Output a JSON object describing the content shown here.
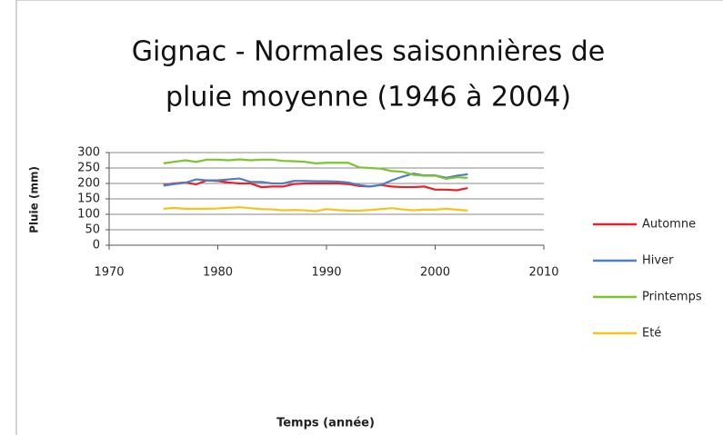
{
  "chart_data": {
    "type": "line",
    "title": [
      "Gignac - Normales saisonnières de",
      "pluie moyenne (1946 à 2004)"
    ],
    "x_label": "Temps (année)",
    "y_label": "Pluie (mm)",
    "x": [
      1975,
      1976,
      1977,
      1978,
      1979,
      1980,
      1981,
      1982,
      1983,
      1984,
      1985,
      1986,
      1987,
      1988,
      1989,
      1990,
      1991,
      1992,
      1993,
      1994,
      1995,
      1996,
      1997,
      1998,
      1999,
      2000,
      2001,
      2002,
      2003
    ],
    "series": [
      {
        "name": "Automne",
        "color": "#e8222a",
        "values": [
          195,
          200,
          203,
          197,
          210,
          208,
          203,
          200,
          200,
          188,
          190,
          190,
          198,
          200,
          200,
          200,
          200,
          198,
          192,
          190,
          195,
          190,
          188,
          188,
          190,
          180,
          180,
          178,
          185
        ]
      },
      {
        "name": "Hiver",
        "color": "#4f7ec4",
        "values": [
          193,
          198,
          202,
          213,
          210,
          210,
          213,
          216,
          205,
          205,
          200,
          200,
          208,
          208,
          207,
          207,
          206,
          203,
          195,
          190,
          195,
          210,
          222,
          232,
          226,
          226,
          218,
          225,
          230
        ]
      },
      {
        "name": "Printemps",
        "color": "#7cc42e",
        "values": [
          265,
          270,
          275,
          270,
          277,
          277,
          275,
          278,
          275,
          277,
          277,
          273,
          272,
          270,
          265,
          267,
          267,
          267,
          252,
          250,
          248,
          240,
          238,
          228,
          225,
          225,
          215,
          220,
          218
        ]
      },
      {
        "name": "Eté",
        "color": "#f7c21b",
        "values": [
          118,
          121,
          118,
          118,
          118,
          119,
          121,
          123,
          120,
          117,
          116,
          113,
          114,
          113,
          110,
          117,
          114,
          112,
          112,
          114,
          117,
          120,
          116,
          113,
          115,
          115,
          118,
          115,
          112
        ]
      }
    ],
    "xlim": [
      1970,
      2010
    ],
    "xticks": [
      1970,
      1980,
      1990,
      2000,
      2010
    ],
    "ylim": [
      0,
      300
    ],
    "yticks": [
      0,
      50,
      100,
      150,
      200,
      250,
      300
    ],
    "grid": true,
    "legend": "right"
  }
}
